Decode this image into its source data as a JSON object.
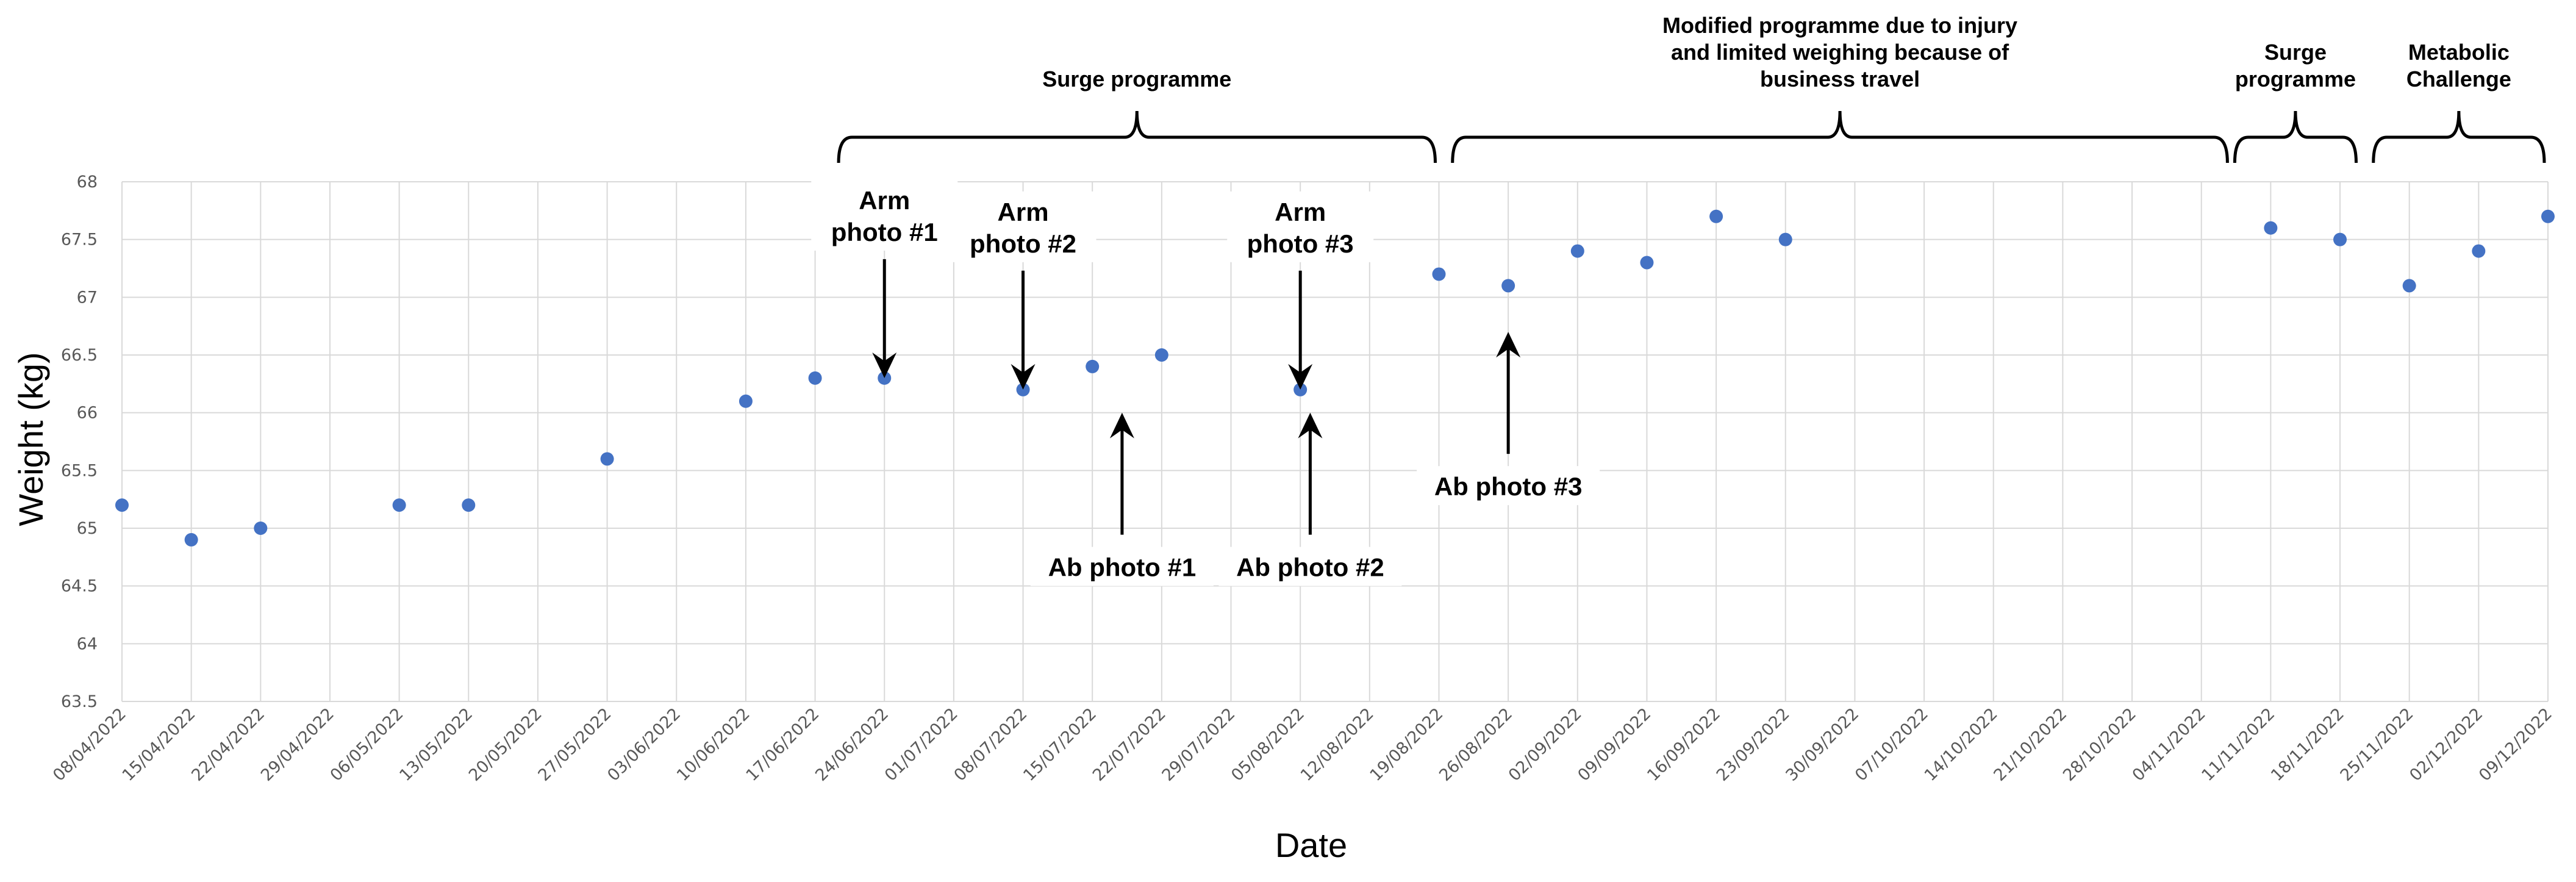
{
  "chart_data": {
    "type": "scatter",
    "title": "",
    "xlabel": "Date",
    "ylabel": "Weight (kg)",
    "ylim": [
      63.5,
      68
    ],
    "y_ticks": [
      "63.5",
      "64",
      "64.5",
      "65",
      "65.5",
      "66",
      "66.5",
      "67",
      "67.5",
      "68"
    ],
    "x_ticks": [
      "08/04/2022",
      "15/04/2022",
      "22/04/2022",
      "29/04/2022",
      "06/05/2022",
      "13/05/2022",
      "20/05/2022",
      "27/05/2022",
      "03/06/2022",
      "10/06/2022",
      "17/06/2022",
      "24/06/2022",
      "01/07/2022",
      "08/07/2022",
      "15/07/2022",
      "22/07/2022",
      "29/07/2022",
      "05/08/2022",
      "12/08/2022",
      "19/08/2022",
      "26/08/2022",
      "02/09/2022",
      "09/09/2022",
      "16/09/2022",
      "23/09/2022",
      "30/09/2022",
      "07/10/2022",
      "14/10/2022",
      "21/10/2022",
      "28/10/2022",
      "04/11/2022",
      "11/11/2022",
      "18/11/2022",
      "25/11/2022",
      "02/12/2022",
      "09/12/2022"
    ],
    "grid": true,
    "marker_color": "#4472c4",
    "points": [
      {
        "x": "08/04/2022",
        "y": 65.2
      },
      {
        "x": "15/04/2022",
        "y": 64.9
      },
      {
        "x": "22/04/2022",
        "y": 65.0
      },
      {
        "x": "06/05/2022",
        "y": 65.2
      },
      {
        "x": "13/05/2022",
        "y": 65.2
      },
      {
        "x": "27/05/2022",
        "y": 65.6
      },
      {
        "x": "10/06/2022",
        "y": 66.1
      },
      {
        "x": "17/06/2022",
        "y": 66.3
      },
      {
        "x": "24/06/2022",
        "y": 66.3
      },
      {
        "x": "08/07/2022",
        "y": 66.2
      },
      {
        "x": "15/07/2022",
        "y": 66.4
      },
      {
        "x": "22/07/2022",
        "y": 66.5
      },
      {
        "x": "05/08/2022",
        "y": 66.2
      },
      {
        "x": "19/08/2022",
        "y": 67.2
      },
      {
        "x": "26/08/2022",
        "y": 67.1
      },
      {
        "x": "02/09/2022",
        "y": 67.4
      },
      {
        "x": "09/09/2022",
        "y": 67.3
      },
      {
        "x": "16/09/2022",
        "y": 67.7
      },
      {
        "x": "23/09/2022",
        "y": 67.5
      },
      {
        "x": "11/11/2022",
        "y": 67.6
      },
      {
        "x": "18/11/2022",
        "y": 67.5
      },
      {
        "x": "25/11/2022",
        "y": 67.1
      },
      {
        "x": "02/12/2022",
        "y": 67.4
      },
      {
        "x": "09/12/2022",
        "y": 67.7
      }
    ],
    "annotations": [
      {
        "lines": [
          "Arm",
          "photo #1"
        ],
        "date": "24/06/2022",
        "y": 66.3,
        "direction": "down"
      },
      {
        "lines": [
          "Arm",
          "photo #2"
        ],
        "date": "08/07/2022",
        "y": 66.2,
        "direction": "down"
      },
      {
        "lines": [
          "Arm",
          "photo #3"
        ],
        "date": "05/08/2022",
        "y": 66.2,
        "direction": "down"
      },
      {
        "lines": [
          "Ab photo #1"
        ],
        "date": "18/07/2022",
        "y": 66.0,
        "direction": "up"
      },
      {
        "lines": [
          "Ab photo #2"
        ],
        "date": "06/08/2022",
        "y": 66.0,
        "direction": "up"
      },
      {
        "lines": [
          "Ab photo #3"
        ],
        "date": "26/08/2022",
        "y": 66.7,
        "direction": "up"
      }
    ],
    "phases": [
      {
        "lines": [
          "Surge programme"
        ],
        "start": "19/06/2022",
        "end": "19/08/2022"
      },
      {
        "lines": [
          "Modified programme due to injury",
          "and limited weighing because of",
          "business travel"
        ],
        "start": "20/08/2022",
        "end": "07/11/2022"
      },
      {
        "lines": [
          "Surge",
          "programme"
        ],
        "start": "07/11/2022",
        "end": "20/11/2022"
      },
      {
        "lines": [
          "Metabolic",
          "Challenge"
        ],
        "start": "21/11/2022",
        "end": "09/12/2022"
      }
    ]
  }
}
